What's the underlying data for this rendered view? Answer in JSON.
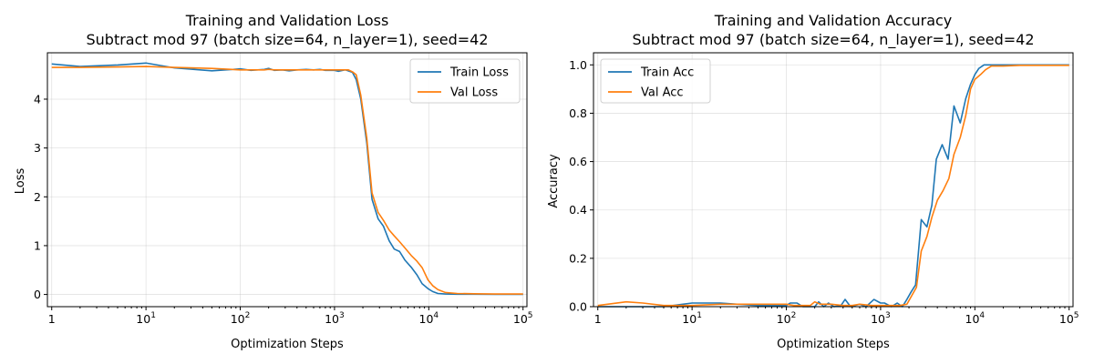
{
  "chart_data": [
    {
      "type": "line",
      "title": "Training and Validation Loss",
      "subtitle": "Subtract mod 97 (batch size=64, n_layer=1), seed=42",
      "xlabel": "Optimization Steps",
      "ylabel": "Loss",
      "xscale": "log",
      "xlim": [
        0.9,
        110000
      ],
      "ylim": [
        -0.25,
        4.95
      ],
      "xticks": [
        {
          "value": 1,
          "base": "1",
          "exp": ""
        },
        {
          "value": 10,
          "base": "10",
          "exp": "1"
        },
        {
          "value": 100,
          "base": "10",
          "exp": "2"
        },
        {
          "value": 1000,
          "base": "10",
          "exp": "3"
        },
        {
          "value": 10000,
          "base": "10",
          "exp": "4"
        },
        {
          "value": 100000,
          "base": "10",
          "exp": "5"
        }
      ],
      "yticks": [
        0,
        1,
        2,
        3,
        4
      ],
      "ytick_labels": [
        "0",
        "1",
        "2",
        "3",
        "4"
      ],
      "grid": true,
      "legend": "top-right",
      "series": [
        {
          "name": "Train Loss",
          "color": "#1f77b4",
          "points": [
            [
              1,
              4.72
            ],
            [
              2,
              4.67
            ],
            [
              5,
              4.7
            ],
            [
              10,
              4.74
            ],
            [
              20,
              4.64
            ],
            [
              50,
              4.58
            ],
            [
              100,
              4.62
            ],
            [
              130,
              4.59
            ],
            [
              180,
              4.61
            ],
            [
              200,
              4.63
            ],
            [
              230,
              4.59
            ],
            [
              280,
              4.6
            ],
            [
              330,
              4.58
            ],
            [
              400,
              4.6
            ],
            [
              500,
              4.61
            ],
            [
              600,
              4.6
            ],
            [
              700,
              4.61
            ],
            [
              800,
              4.59
            ],
            [
              1000,
              4.59
            ],
            [
              1100,
              4.57
            ],
            [
              1300,
              4.6
            ],
            [
              1400,
              4.58
            ],
            [
              1550,
              4.55
            ],
            [
              1700,
              4.4
            ],
            [
              1900,
              4.0
            ],
            [
              2200,
              3.1
            ],
            [
              2500,
              1.95
            ],
            [
              2900,
              1.55
            ],
            [
              3300,
              1.4
            ],
            [
              3800,
              1.1
            ],
            [
              4300,
              0.93
            ],
            [
              4900,
              0.88
            ],
            [
              5600,
              0.7
            ],
            [
              6500,
              0.56
            ],
            [
              7500,
              0.4
            ],
            [
              8500,
              0.22
            ],
            [
              9800,
              0.12
            ],
            [
              11000,
              0.06
            ],
            [
              12500,
              0.02
            ],
            [
              15000,
              0.01
            ],
            [
              20000,
              0.005
            ],
            [
              30000,
              0.005
            ],
            [
              50000,
              0.003
            ],
            [
              100000,
              0.002
            ]
          ]
        },
        {
          "name": "Val Loss",
          "color": "#ff7f0e",
          "points": [
            [
              1,
              4.65
            ],
            [
              2,
              4.65
            ],
            [
              5,
              4.66
            ],
            [
              10,
              4.67
            ],
            [
              20,
              4.65
            ],
            [
              50,
              4.63
            ],
            [
              100,
              4.6
            ],
            [
              130,
              4.6
            ],
            [
              180,
              4.6
            ],
            [
              200,
              4.61
            ],
            [
              230,
              4.6
            ],
            [
              280,
              4.6
            ],
            [
              330,
              4.6
            ],
            [
              400,
              4.6
            ],
            [
              500,
              4.6
            ],
            [
              600,
              4.6
            ],
            [
              700,
              4.6
            ],
            [
              800,
              4.6
            ],
            [
              1000,
              4.6
            ],
            [
              1100,
              4.6
            ],
            [
              1300,
              4.6
            ],
            [
              1400,
              4.6
            ],
            [
              1550,
              4.56
            ],
            [
              1700,
              4.5
            ],
            [
              1900,
              4.08
            ],
            [
              2200,
              3.2
            ],
            [
              2500,
              2.08
            ],
            [
              2900,
              1.68
            ],
            [
              3300,
              1.52
            ],
            [
              3800,
              1.32
            ],
            [
              4300,
              1.2
            ],
            [
              4900,
              1.08
            ],
            [
              5600,
              0.95
            ],
            [
              6500,
              0.8
            ],
            [
              7500,
              0.68
            ],
            [
              8500,
              0.55
            ],
            [
              9800,
              0.3
            ],
            [
              11000,
              0.18
            ],
            [
              12500,
              0.1
            ],
            [
              15000,
              0.04
            ],
            [
              20000,
              0.02
            ],
            [
              30000,
              0.015
            ],
            [
              50000,
              0.01
            ],
            [
              100000,
              0.01
            ]
          ]
        }
      ]
    },
    {
      "type": "line",
      "title": "Training and Validation Accuracy",
      "subtitle": "Subtract mod 97 (batch size=64, n_layer=1), seed=42",
      "xlabel": "Optimization Steps",
      "ylabel": "Accuracy",
      "xscale": "log",
      "xlim": [
        0.9,
        110000
      ],
      "ylim": [
        0.0,
        1.05
      ],
      "xticks": [
        {
          "value": 1,
          "base": "1",
          "exp": ""
        },
        {
          "value": 10,
          "base": "10",
          "exp": "1"
        },
        {
          "value": 100,
          "base": "10",
          "exp": "2"
        },
        {
          "value": 1000,
          "base": "10",
          "exp": "3"
        },
        {
          "value": 10000,
          "base": "10",
          "exp": "4"
        },
        {
          "value": 100000,
          "base": "10",
          "exp": "5"
        }
      ],
      "yticks": [
        0.0,
        0.2,
        0.4,
        0.6,
        0.8,
        1.0
      ],
      "ytick_labels": [
        "0.0",
        "0.2",
        "0.4",
        "0.6",
        "0.8",
        "1.0"
      ],
      "grid": true,
      "legend": "top-left",
      "series": [
        {
          "name": "Train Acc",
          "color": "#1f77b4",
          "points": [
            [
              1,
              0.0
            ],
            [
              2,
              0.0
            ],
            [
              5,
              0.0
            ],
            [
              8,
              0.01
            ],
            [
              10,
              0.015
            ],
            [
              20,
              0.015
            ],
            [
              30,
              0.01
            ],
            [
              50,
              0.005
            ],
            [
              100,
              0.005
            ],
            [
              110,
              0.015
            ],
            [
              130,
              0.015
            ],
            [
              150,
              0.0
            ],
            [
              200,
              0.0
            ],
            [
              220,
              0.02
            ],
            [
              250,
              0.0
            ],
            [
              280,
              0.015
            ],
            [
              320,
              0.0
            ],
            [
              380,
              0.005
            ],
            [
              420,
              0.03
            ],
            [
              480,
              0.0
            ],
            [
              600,
              0.01
            ],
            [
              700,
              0.0
            ],
            [
              850,
              0.03
            ],
            [
              1000,
              0.015
            ],
            [
              1100,
              0.015
            ],
            [
              1300,
              0.0
            ],
            [
              1500,
              0.015
            ],
            [
              1700,
              0.0
            ],
            [
              1900,
              0.03
            ],
            [
              2100,
              0.06
            ],
            [
              2350,
              0.09
            ],
            [
              2700,
              0.36
            ],
            [
              3100,
              0.33
            ],
            [
              3500,
              0.42
            ],
            [
              3900,
              0.61
            ],
            [
              4500,
              0.67
            ],
            [
              5200,
              0.61
            ],
            [
              6000,
              0.83
            ],
            [
              7000,
              0.76
            ],
            [
              8000,
              0.86
            ],
            [
              9000,
              0.92
            ],
            [
              10000,
              0.96
            ],
            [
              11000,
              0.985
            ],
            [
              12500,
              1.0
            ],
            [
              15000,
              1.0
            ],
            [
              20000,
              1.0
            ],
            [
              30000,
              1.0
            ],
            [
              50000,
              1.0
            ],
            [
              100000,
              1.0
            ]
          ]
        },
        {
          "name": "Val Acc",
          "color": "#ff7f0e",
          "points": [
            [
              1,
              0.005
            ],
            [
              2,
              0.02
            ],
            [
              3,
              0.015
            ],
            [
              5,
              0.005
            ],
            [
              7,
              0.005
            ],
            [
              10,
              0.005
            ],
            [
              20,
              0.01
            ],
            [
              50,
              0.01
            ],
            [
              100,
              0.01
            ],
            [
              120,
              0.005
            ],
            [
              150,
              0.005
            ],
            [
              180,
              0.005
            ],
            [
              200,
              0.02
            ],
            [
              230,
              0.01
            ],
            [
              300,
              0.01
            ],
            [
              400,
              0.005
            ],
            [
              500,
              0.005
            ],
            [
              600,
              0.01
            ],
            [
              800,
              0.005
            ],
            [
              1000,
              0.005
            ],
            [
              1300,
              0.005
            ],
            [
              1600,
              0.005
            ],
            [
              1900,
              0.01
            ],
            [
              2100,
              0.04
            ],
            [
              2400,
              0.08
            ],
            [
              2700,
              0.23
            ],
            [
              3100,
              0.29
            ],
            [
              3500,
              0.37
            ],
            [
              4000,
              0.44
            ],
            [
              4600,
              0.48
            ],
            [
              5300,
              0.53
            ],
            [
              6000,
              0.63
            ],
            [
              7000,
              0.7
            ],
            [
              8000,
              0.79
            ],
            [
              9000,
              0.9
            ],
            [
              10000,
              0.94
            ],
            [
              11500,
              0.96
            ],
            [
              13000,
              0.98
            ],
            [
              15000,
              0.995
            ],
            [
              20000,
              0.995
            ],
            [
              30000,
              0.998
            ],
            [
              50000,
              0.998
            ],
            [
              100000,
              0.998
            ]
          ]
        }
      ]
    }
  ]
}
